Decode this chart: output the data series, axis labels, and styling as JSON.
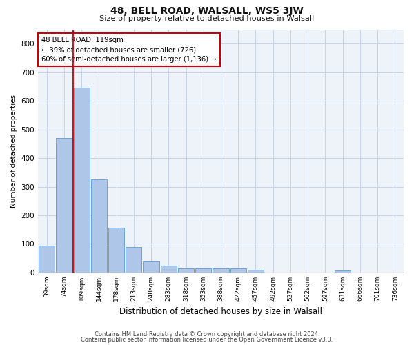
{
  "title": "48, BELL ROAD, WALSALL, WS5 3JW",
  "subtitle": "Size of property relative to detached houses in Walsall",
  "xlabel": "Distribution of detached houses by size in Walsall",
  "ylabel": "Number of detached properties",
  "bar_color": "#aec6e8",
  "bar_edge_color": "#5b9bd5",
  "grid_color": "#c8d4e8",
  "background_color": "#eef2f9",
  "categories": [
    "39sqm",
    "74sqm",
    "109sqm",
    "144sqm",
    "178sqm",
    "213sqm",
    "248sqm",
    "283sqm",
    "318sqm",
    "353sqm",
    "388sqm",
    "422sqm",
    "457sqm",
    "492sqm",
    "527sqm",
    "562sqm",
    "597sqm",
    "631sqm",
    "666sqm",
    "701sqm",
    "736sqm"
  ],
  "values": [
    95,
    470,
    645,
    325,
    157,
    90,
    40,
    23,
    15,
    15,
    14,
    14,
    9,
    0,
    0,
    0,
    0,
    8,
    0,
    0,
    0
  ],
  "ylim": [
    0,
    850
  ],
  "yticks": [
    0,
    100,
    200,
    300,
    400,
    500,
    600,
    700,
    800
  ],
  "property_bin_index": 2,
  "vline_color": "#cc0000",
  "annotation_line1": "48 BELL ROAD: 119sqm",
  "annotation_line2": "← 39% of detached houses are smaller (726)",
  "annotation_line3": "60% of semi-detached houses are larger (1,136) →",
  "annotation_box_color": "#ffffff",
  "annotation_box_edge": "#cc0000",
  "footer_line1": "Contains HM Land Registry data © Crown copyright and database right 2024.",
  "footer_line2": "Contains public sector information licensed under the Open Government Licence v3.0."
}
